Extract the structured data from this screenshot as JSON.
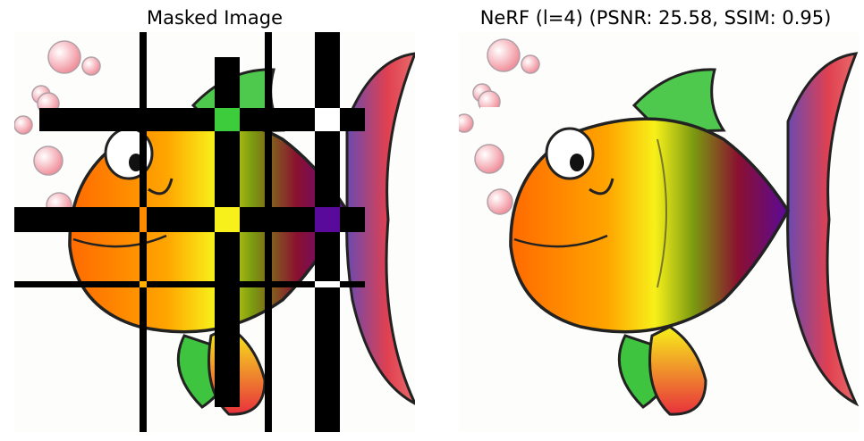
{
  "panels": [
    {
      "title": "Masked Image"
    },
    {
      "title": "NeRF (l=4) (PSNR: 25.58, SSIM: 0.95)"
    }
  ],
  "colors": {
    "fish_orange": "#ff7a00",
    "fish_yellow": "#f7f01a",
    "fish_dark_red": "#8a1030",
    "fish_purple": "#5a0a9a",
    "fin_green": "#33cc33",
    "tail_red": "#e83c3c",
    "tail_purple": "#6a4ab0",
    "bubble_pink": "#f4b8bf",
    "mask": "#000000"
  }
}
